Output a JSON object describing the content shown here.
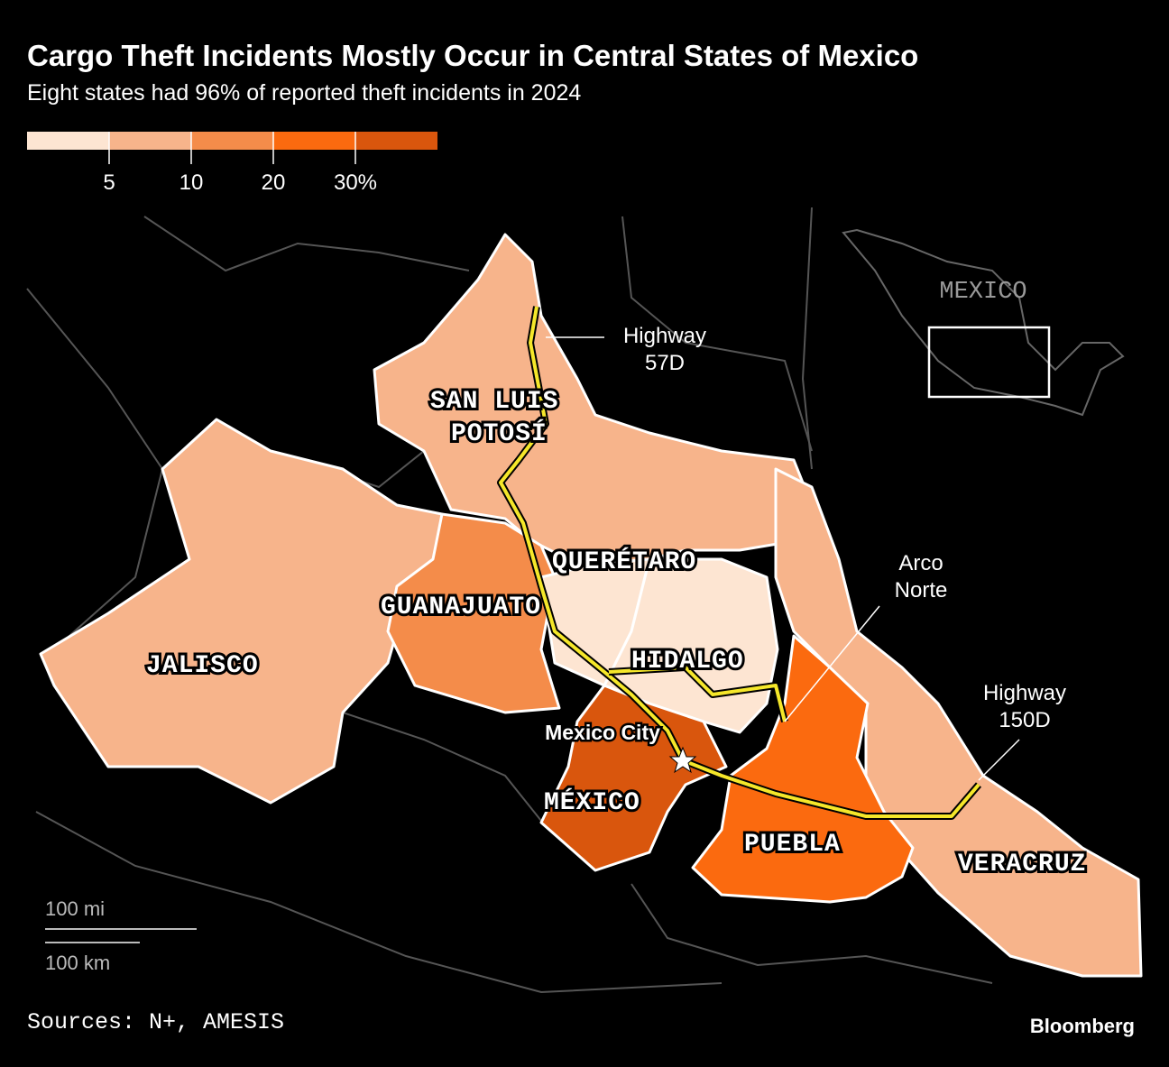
{
  "header": {
    "title": "Cargo Theft Incidents Mostly Occur in Central States of Mexico",
    "subtitle": "Eight states had 96% of reported theft incidents in 2024"
  },
  "legend": {
    "colors": [
      "#fde5d2",
      "#f7b48b",
      "#f48c4a",
      "#fb6a0f",
      "#d9560d"
    ],
    "ticks": [
      "5",
      "10",
      "20",
      "30%"
    ]
  },
  "map": {
    "states": [
      {
        "label": [
          "JALISCO"
        ],
        "color": "#f7b48b"
      },
      {
        "label": [
          "SAN LUIS",
          "POTOSÍ"
        ],
        "color": "#f7b48b"
      },
      {
        "label": [
          "VERACRUZ"
        ],
        "color": "#f7b48b"
      },
      {
        "label": [
          "GUANAJUATO"
        ],
        "color": "#f48c4a"
      },
      {
        "label": [
          "QUERÉTARO"
        ],
        "color": "#fde5d2"
      },
      {
        "label": [
          "HIDALGO"
        ],
        "color": "#fde5d2"
      },
      {
        "label": [
          "MÉXICO"
        ],
        "color": "#d9560d"
      },
      {
        "label": [
          "PUEBLA"
        ],
        "color": "#fb6a0f"
      }
    ],
    "highways": [
      [
        "Highway",
        "57D"
      ],
      [
        "Arco",
        "Norte"
      ],
      [
        "Highway",
        "150D"
      ]
    ],
    "city": "Mexico City",
    "inset_label": "MEXICO"
  },
  "scale": [
    "100 mi",
    "100 km"
  ],
  "footer": {
    "source": "Sources: N+, AMESIS",
    "brand": "Bloomberg"
  }
}
